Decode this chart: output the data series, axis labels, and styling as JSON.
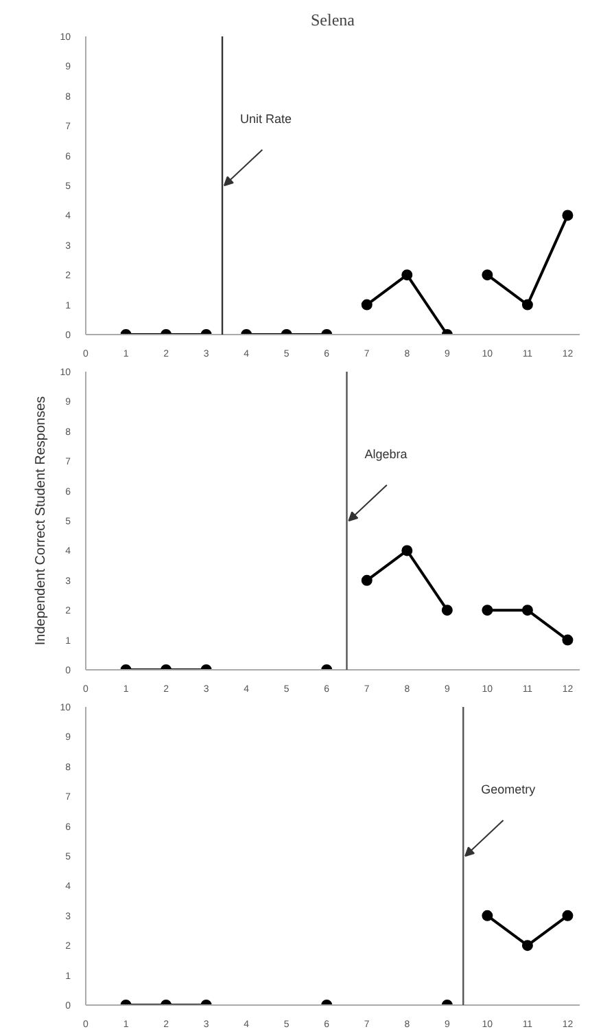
{
  "chart_data": [
    {
      "type": "line",
      "title": "Selena",
      "marker": "circle",
      "line_style": "solid",
      "grid": false,
      "xlim": [
        0,
        12.3
      ],
      "ylim": [
        0,
        10
      ],
      "xticks": [
        0,
        1,
        2,
        3,
        4,
        5,
        6,
        7,
        8,
        9,
        10,
        11,
        12
      ],
      "yticks": [
        0,
        1,
        2,
        3,
        4,
        5,
        6,
        7,
        8,
        9,
        10
      ],
      "series": [
        {
          "color": "#000000",
          "x": [
            1,
            2,
            3
          ],
          "values": [
            0,
            0,
            0
          ]
        },
        {
          "color": "#000000",
          "x": [
            4,
            5,
            6
          ],
          "values": [
            0,
            0,
            0
          ]
        },
        {
          "color": "#000000",
          "x": [
            7,
            8,
            9
          ],
          "values": [
            1,
            2,
            0
          ]
        },
        {
          "color": "#000000",
          "x": [
            10,
            11,
            12
          ],
          "values": [
            2,
            1,
            4
          ]
        }
      ],
      "ref_lines": [
        {
          "axis": "x",
          "value": 3.4,
          "label": "Unit Rate",
          "color": "#333333"
        }
      ]
    },
    {
      "type": "line",
      "ylabel": "Independent Correct Student Responses",
      "marker": "circle",
      "line_style": "solid",
      "grid": false,
      "xlim": [
        0,
        12.3
      ],
      "ylim": [
        0,
        10
      ],
      "xticks": [
        0,
        1,
        2,
        3,
        4,
        5,
        6,
        7,
        8,
        9,
        10,
        11,
        12
      ],
      "yticks": [
        0,
        1,
        2,
        3,
        4,
        5,
        6,
        7,
        8,
        9,
        10
      ],
      "series": [
        {
          "color": "#000000",
          "x": [
            1,
            2,
            3
          ],
          "values": [
            0,
            0,
            0
          ]
        },
        {
          "color": "#000000",
          "x": [
            6
          ],
          "values": [
            0
          ]
        },
        {
          "color": "#000000",
          "x": [
            7,
            8,
            9
          ],
          "values": [
            3,
            4,
            2
          ]
        },
        {
          "color": "#000000",
          "x": [
            10,
            11,
            12
          ],
          "values": [
            2,
            2,
            1
          ]
        }
      ],
      "ref_lines": [
        {
          "axis": "x",
          "value": 6.5,
          "label": "Algebra",
          "color": "#555555"
        }
      ]
    },
    {
      "type": "line",
      "marker": "circle",
      "line_style": "solid",
      "grid": false,
      "xlim": [
        0,
        12.3
      ],
      "ylim": [
        0,
        10
      ],
      "xticks": [
        0,
        1,
        2,
        3,
        4,
        5,
        6,
        7,
        8,
        9,
        10,
        11,
        12
      ],
      "yticks": [
        0,
        1,
        2,
        3,
        4,
        5,
        6,
        7,
        8,
        9,
        10
      ],
      "series": [
        {
          "color": "#000000",
          "x": [
            1,
            2,
            3
          ],
          "values": [
            0,
            0,
            0
          ]
        },
        {
          "color": "#000000",
          "x": [
            6
          ],
          "values": [
            0
          ]
        },
        {
          "color": "#000000",
          "x": [
            9
          ],
          "values": [
            0
          ]
        },
        {
          "color": "#000000",
          "x": [
            10,
            11,
            12
          ],
          "values": [
            3,
            2,
            3
          ]
        }
      ],
      "ref_lines": [
        {
          "axis": "x",
          "value": 9.4,
          "label": "Geometry",
          "color": "#555555"
        }
      ]
    }
  ]
}
